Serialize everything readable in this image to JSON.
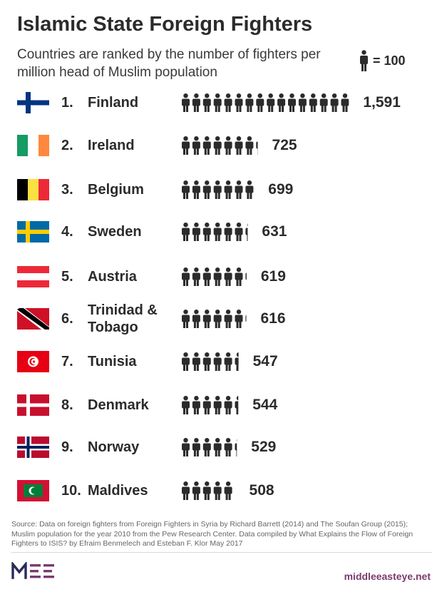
{
  "title": "Islamic State Foreign Fighters",
  "subtitle": "Countries are ranked by the number of fighters per million head of Muslim population",
  "legend": {
    "icon": "person-icon",
    "label": "= 100",
    "unit_value": 100
  },
  "colors": {
    "text": "#2b2b2b",
    "icon": "#2b2b2b",
    "brand": "#7a3b6e"
  },
  "chart_data": {
    "type": "bar",
    "title": "Islamic State Foreign Fighters",
    "subtitle": "Countries are ranked by the number of fighters per million head of Muslim population",
    "xlabel": "",
    "ylabel": "",
    "categories": [
      "Finland",
      "Ireland",
      "Belgium",
      "Sweden",
      "Austria",
      "Trinidad & Tobago",
      "Tunisia",
      "Denmark",
      "Norway",
      "Maldives"
    ],
    "values": [
      1591,
      725,
      699,
      631,
      619,
      616,
      547,
      544,
      529,
      508
    ],
    "rows": [
      {
        "rank": "1.",
        "country": "Finland",
        "value": 1591,
        "value_label": "1,591",
        "flag": "finland-flag"
      },
      {
        "rank": "2.",
        "country": "Ireland",
        "value": 725,
        "value_label": "725",
        "flag": "ireland-flag"
      },
      {
        "rank": "3.",
        "country": "Belgium",
        "value": 699,
        "value_label": "699",
        "flag": "belgium-flag"
      },
      {
        "rank": "4.",
        "country": "Sweden",
        "value": 631,
        "value_label": "631",
        "flag": "sweden-flag"
      },
      {
        "rank": "5.",
        "country": "Austria",
        "value": 619,
        "value_label": "619",
        "flag": "austria-flag"
      },
      {
        "rank": "6.",
        "country": "Trinidad & Tobago",
        "value": 616,
        "value_label": "616",
        "flag": "trinidad-and-tobago-flag"
      },
      {
        "rank": "7.",
        "country": "Tunisia",
        "value": 547,
        "value_label": "547",
        "flag": "tunisia-flag"
      },
      {
        "rank": "8.",
        "country": "Denmark",
        "value": 544,
        "value_label": "544",
        "flag": "denmark-flag"
      },
      {
        "rank": "9.",
        "country": "Norway",
        "value": 529,
        "value_label": "529",
        "flag": "norway-flag"
      },
      {
        "rank": "10.",
        "country": "Maldives",
        "value": 508,
        "value_label": "508",
        "flag": "maldives-flag"
      }
    ],
    "legend_position": "top-right",
    "grid": false
  },
  "source": "Source: Data on foreign fighters from Foreign Fighters in Syria by Richard Barrett (2014) and The Soufan Group (2015); Muslim population for the year 2010 from the Pew Research Center. Data compiled by What Explains the Flow of Foreign Fighters to ISIS? by Efraim Benmelech and Esteban F. Klor May 2017",
  "footer": {
    "logo": "MEE",
    "site": "middleeasteye.net"
  }
}
